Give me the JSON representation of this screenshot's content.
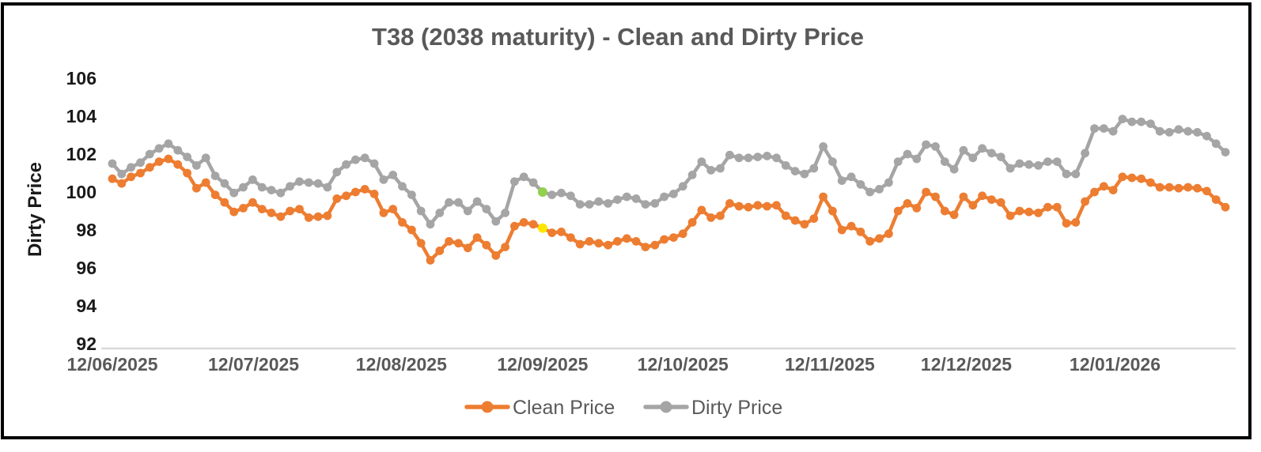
{
  "title": "T38 (2038 maturity) - Clean and Dirty Price",
  "y_axis_label": "Dirty Price",
  "colors": {
    "clean": "#ED7D31",
    "dirty": "#A5A5A5",
    "highlight_clean": "#FFE600",
    "highlight_dirty": "#92D050",
    "title_text": "#595959",
    "x_tick_text": "#595959",
    "y_tick_text": "#1a1a1a",
    "axis_line": "#D9D9D9",
    "frame": "#000000",
    "background": "#FFFFFF"
  },
  "chart_data": {
    "type": "line",
    "title": "T38 (2038 maturity) - Clean and Dirty Price",
    "xlabel": "",
    "ylabel": "Dirty Price",
    "ylim": [
      92,
      106
    ],
    "y_ticks": [
      92,
      94,
      96,
      98,
      100,
      102,
      104,
      106
    ],
    "x_tick_labels": [
      "12/06/2025",
      "12/07/2025",
      "12/08/2025",
      "12/09/2025",
      "12/10/2025",
      "12/11/2025",
      "12/12/2025",
      "12/01/2026"
    ],
    "x_tick_indices": [
      0,
      15.1,
      30.9,
      46,
      61,
      76.7,
      91.3,
      107.2
    ],
    "grid": "none",
    "legend_position": "bottom-center",
    "marker": "circle",
    "series": [
      {
        "name": "Clean Price",
        "color": "#ED7D31",
        "values": [
          100.7,
          100.45,
          100.8,
          101.0,
          101.3,
          101.6,
          101.75,
          101.45,
          101.0,
          100.2,
          100.5,
          99.85,
          99.45,
          98.95,
          99.15,
          99.45,
          99.1,
          98.9,
          98.7,
          99.0,
          99.1,
          98.65,
          98.7,
          98.75,
          99.65,
          99.8,
          100.0,
          100.15,
          99.9,
          98.9,
          99.1,
          98.4,
          98.0,
          97.3,
          96.4,
          96.9,
          97.4,
          97.3,
          97.05,
          97.6,
          97.2,
          96.65,
          97.1,
          98.2,
          98.4,
          98.3,
          98.1,
          97.85,
          97.9,
          97.6,
          97.25,
          97.4,
          97.3,
          97.2,
          97.4,
          97.55,
          97.4,
          97.1,
          97.2,
          97.5,
          97.6,
          97.8,
          98.4,
          99.05,
          98.65,
          98.75,
          99.4,
          99.25,
          99.2,
          99.3,
          99.25,
          99.3,
          98.75,
          98.5,
          98.3,
          98.6,
          99.75,
          99.0,
          98.0,
          98.2,
          97.9,
          97.4,
          97.55,
          97.8,
          99.0,
          99.4,
          99.15,
          100.0,
          99.75,
          99.0,
          98.8,
          99.75,
          99.3,
          99.8,
          99.6,
          99.45,
          98.75,
          99.0,
          98.95,
          98.9,
          99.2,
          99.2,
          98.35,
          98.4,
          99.5,
          100.0,
          100.3,
          100.1,
          100.8,
          100.75,
          100.7,
          100.5,
          100.25,
          100.25,
          100.2,
          100.25,
          100.2,
          100.05,
          99.6,
          99.2
        ]
      },
      {
        "name": "Dirty Price",
        "color": "#A5A5A5",
        "values": [
          101.5,
          100.95,
          101.3,
          101.55,
          102.0,
          102.3,
          102.55,
          102.2,
          101.85,
          101.4,
          101.8,
          100.85,
          100.45,
          99.95,
          100.25,
          100.65,
          100.25,
          100.1,
          99.95,
          100.3,
          100.55,
          100.5,
          100.45,
          100.25,
          101.05,
          101.45,
          101.7,
          101.8,
          101.5,
          100.65,
          100.9,
          100.3,
          99.85,
          99.0,
          98.3,
          98.9,
          99.45,
          99.45,
          99.0,
          99.5,
          99.1,
          98.45,
          98.9,
          100.55,
          100.8,
          100.5,
          100.0,
          99.85,
          99.95,
          99.8,
          99.35,
          99.35,
          99.5,
          99.4,
          99.6,
          99.75,
          99.65,
          99.35,
          99.4,
          99.75,
          99.9,
          100.3,
          100.9,
          101.6,
          101.15,
          101.25,
          101.95,
          101.8,
          101.8,
          101.85,
          101.9,
          101.8,
          101.4,
          101.1,
          100.95,
          101.25,
          102.4,
          101.6,
          100.6,
          100.8,
          100.4,
          100.0,
          100.15,
          100.5,
          101.6,
          102.0,
          101.75,
          102.5,
          102.4,
          101.6,
          101.2,
          102.2,
          101.8,
          102.3,
          102.05,
          101.85,
          101.25,
          101.5,
          101.45,
          101.4,
          101.6,
          101.6,
          100.95,
          100.95,
          102.05,
          103.35,
          103.35,
          103.2,
          103.85,
          103.7,
          103.7,
          103.6,
          103.2,
          103.15,
          103.3,
          103.2,
          103.15,
          102.95,
          102.55,
          102.1
        ]
      }
    ],
    "highlight": {
      "index": 46,
      "near_x_tick": "12/09/2025",
      "clean_value": 98.1,
      "dirty_value": 100.0,
      "clean_marker_color": "#FFE600",
      "dirty_marker_color": "#92D050"
    }
  },
  "legend": {
    "items": [
      {
        "label": "Clean Price",
        "color": "#ED7D31"
      },
      {
        "label": "Dirty Price",
        "color": "#A5A5A5"
      }
    ]
  }
}
